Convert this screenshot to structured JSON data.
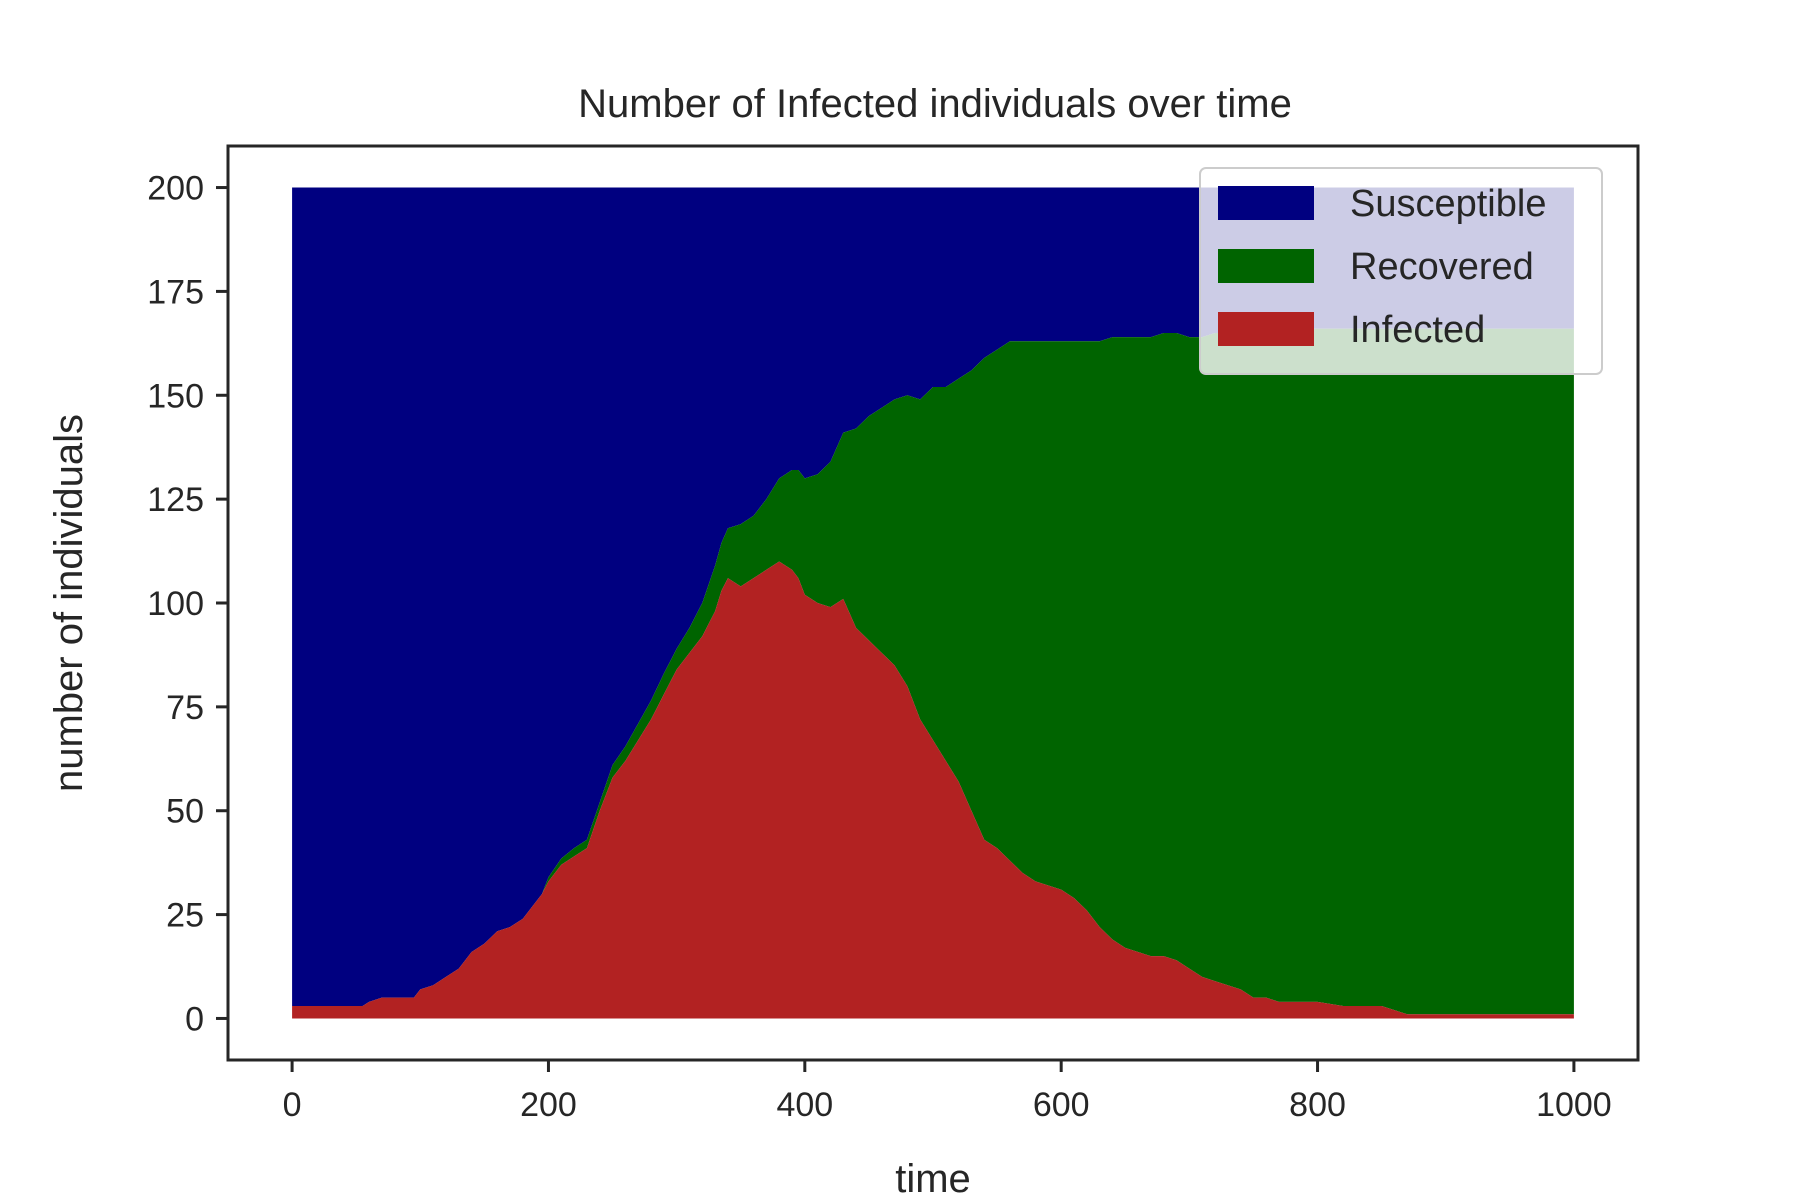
{
  "chart_data": {
    "type": "area",
    "stacked": true,
    "title": "Number of Infected individuals over time",
    "xlabel": "time",
    "ylabel": "number of individuals",
    "xlim": [
      -50,
      1050
    ],
    "ylim": [
      -10,
      210
    ],
    "x_ticks": [
      0,
      200,
      400,
      600,
      800,
      1000
    ],
    "y_ticks": [
      0,
      25,
      50,
      75,
      100,
      125,
      150,
      175,
      200
    ],
    "grid": false,
    "legend_position": "top-right",
    "total": 200,
    "series": [
      {
        "name": "Infected",
        "color": "#b22222",
        "points": [
          [
            0,
            3
          ],
          [
            55,
            3
          ],
          [
            60,
            4
          ],
          [
            70,
            5
          ],
          [
            95,
            5
          ],
          [
            100,
            7
          ],
          [
            110,
            8
          ],
          [
            120,
            10
          ],
          [
            130,
            12
          ],
          [
            140,
            16
          ],
          [
            150,
            18
          ],
          [
            160,
            21
          ],
          [
            170,
            22
          ],
          [
            180,
            24
          ],
          [
            190,
            28
          ],
          [
            195,
            30
          ],
          [
            200,
            33
          ],
          [
            210,
            37
          ],
          [
            220,
            39
          ],
          [
            230,
            41
          ],
          [
            240,
            50
          ],
          [
            250,
            58
          ],
          [
            260,
            62
          ],
          [
            270,
            67
          ],
          [
            280,
            72
          ],
          [
            290,
            78
          ],
          [
            300,
            84
          ],
          [
            310,
            88
          ],
          [
            320,
            92
          ],
          [
            330,
            98
          ],
          [
            335,
            103
          ],
          [
            340,
            106
          ],
          [
            350,
            104
          ],
          [
            360,
            106
          ],
          [
            370,
            108
          ],
          [
            380,
            110
          ],
          [
            390,
            108
          ],
          [
            395,
            106
          ],
          [
            400,
            102
          ],
          [
            410,
            100
          ],
          [
            420,
            99
          ],
          [
            430,
            101
          ],
          [
            440,
            94
          ],
          [
            450,
            91
          ],
          [
            460,
            88
          ],
          [
            470,
            85
          ],
          [
            480,
            80
          ],
          [
            490,
            72
          ],
          [
            500,
            67
          ],
          [
            510,
            62
          ],
          [
            520,
            57
          ],
          [
            530,
            50
          ],
          [
            540,
            43
          ],
          [
            550,
            41
          ],
          [
            560,
            38
          ],
          [
            570,
            35
          ],
          [
            580,
            33
          ],
          [
            590,
            32
          ],
          [
            600,
            31
          ],
          [
            610,
            29
          ],
          [
            620,
            26
          ],
          [
            630,
            22
          ],
          [
            640,
            19
          ],
          [
            650,
            17
          ],
          [
            660,
            16
          ],
          [
            670,
            15
          ],
          [
            680,
            15
          ],
          [
            690,
            14
          ],
          [
            700,
            12
          ],
          [
            710,
            10
          ],
          [
            720,
            9
          ],
          [
            730,
            8
          ],
          [
            740,
            7
          ],
          [
            750,
            5
          ],
          [
            760,
            5
          ],
          [
            770,
            4
          ],
          [
            780,
            4
          ],
          [
            800,
            4
          ],
          [
            820,
            3
          ],
          [
            840,
            3
          ],
          [
            850,
            3
          ],
          [
            860,
            2
          ],
          [
            870,
            1
          ],
          [
            1000,
            1
          ]
        ]
      },
      {
        "name": "Recovered",
        "color": "#006400",
        "points": [
          [
            0,
            0
          ],
          [
            195,
            0
          ],
          [
            200,
            1
          ],
          [
            220,
            2
          ],
          [
            240,
            2
          ],
          [
            250,
            3
          ],
          [
            270,
            4
          ],
          [
            290,
            5
          ],
          [
            300,
            5
          ],
          [
            310,
            6
          ],
          [
            320,
            8
          ],
          [
            330,
            11
          ],
          [
            340,
            12
          ],
          [
            350,
            15
          ],
          [
            360,
            15
          ],
          [
            370,
            17
          ],
          [
            380,
            20
          ],
          [
            390,
            24
          ],
          [
            400,
            28
          ],
          [
            410,
            31
          ],
          [
            420,
            35
          ],
          [
            430,
            40
          ],
          [
            440,
            48
          ],
          [
            450,
            54
          ],
          [
            460,
            59
          ],
          [
            470,
            64
          ],
          [
            480,
            70
          ],
          [
            490,
            77
          ],
          [
            500,
            85
          ],
          [
            510,
            90
          ],
          [
            520,
            97
          ],
          [
            530,
            106
          ],
          [
            540,
            116
          ],
          [
            550,
            120
          ],
          [
            560,
            125
          ],
          [
            570,
            128
          ],
          [
            580,
            130
          ],
          [
            590,
            131
          ],
          [
            600,
            132
          ],
          [
            610,
            134
          ],
          [
            620,
            137
          ],
          [
            630,
            141
          ],
          [
            640,
            145
          ],
          [
            650,
            147
          ],
          [
            660,
            148
          ],
          [
            670,
            149
          ],
          [
            680,
            150
          ],
          [
            690,
            151
          ],
          [
            700,
            152
          ],
          [
            710,
            154
          ],
          [
            720,
            156
          ],
          [
            730,
            157
          ],
          [
            740,
            158
          ],
          [
            750,
            160
          ],
          [
            760,
            161
          ],
          [
            770,
            162
          ],
          [
            780,
            162
          ],
          [
            800,
            162
          ],
          [
            820,
            163
          ],
          [
            840,
            163
          ],
          [
            850,
            163
          ],
          [
            860,
            164
          ],
          [
            870,
            165
          ],
          [
            1000,
            165
          ]
        ]
      },
      {
        "name": "Susceptible",
        "color": "#000080",
        "fill_to": 200
      }
    ]
  }
}
